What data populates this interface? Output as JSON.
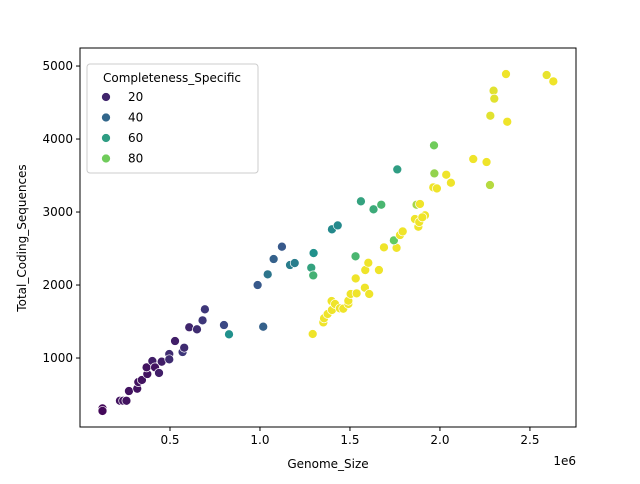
{
  "chart_data": {
    "type": "scatter",
    "title": "",
    "xlabel": "Genome_Size",
    "ylabel": "Total_Coding_Sequences",
    "x_offset_label": "1e6",
    "xlim": [
      0,
      2756000
    ],
    "ylim": [
      55,
      5247
    ],
    "x_ticks": [
      500000,
      1000000,
      1500000,
      2000000,
      2500000
    ],
    "x_tick_labels": [
      "0.5",
      "1.0",
      "1.5",
      "2.0",
      "2.5"
    ],
    "y_ticks": [
      1000,
      2000,
      3000,
      4000,
      5000
    ],
    "y_tick_labels": [
      "1000",
      "2000",
      "3000",
      "4000",
      "5000"
    ],
    "grid": false,
    "hue": "Completeness_Specific",
    "colormap": "viridis",
    "hue_range": [
      10,
      100
    ],
    "legend": {
      "title": "Completeness_Specific",
      "position": "upper-left",
      "entries": [
        {
          "label": "20",
          "value": 20
        },
        {
          "label": "40",
          "value": 40
        },
        {
          "label": "60",
          "value": 60
        },
        {
          "label": "80",
          "value": 80
        }
      ]
    },
    "points": [
      {
        "x": 125000,
        "y": 310,
        "c": 12
      },
      {
        "x": 125000,
        "y": 275,
        "c": 12
      },
      {
        "x": 222000,
        "y": 415,
        "c": 15
      },
      {
        "x": 240000,
        "y": 415,
        "c": 15
      },
      {
        "x": 258000,
        "y": 415,
        "c": 15
      },
      {
        "x": 272000,
        "y": 548,
        "c": 15
      },
      {
        "x": 318000,
        "y": 580,
        "c": 15
      },
      {
        "x": 324000,
        "y": 671,
        "c": 15
      },
      {
        "x": 344000,
        "y": 699,
        "c": 15
      },
      {
        "x": 374000,
        "y": 781,
        "c": 15
      },
      {
        "x": 370000,
        "y": 872,
        "c": 15
      },
      {
        "x": 402000,
        "y": 959,
        "c": 18
      },
      {
        "x": 417000,
        "y": 872,
        "c": 15
      },
      {
        "x": 439000,
        "y": 795,
        "c": 18
      },
      {
        "x": 454000,
        "y": 950,
        "c": 18
      },
      {
        "x": 496000,
        "y": 1055,
        "c": 22
      },
      {
        "x": 496000,
        "y": 982,
        "c": 22
      },
      {
        "x": 528000,
        "y": 1233,
        "c": 18
      },
      {
        "x": 570000,
        "y": 1082,
        "c": 25
      },
      {
        "x": 579000,
        "y": 1141,
        "c": 22
      },
      {
        "x": 607000,
        "y": 1421,
        "c": 20
      },
      {
        "x": 650000,
        "y": 1393,
        "c": 22
      },
      {
        "x": 681000,
        "y": 1516,
        "c": 25
      },
      {
        "x": 694000,
        "y": 1667,
        "c": 25
      },
      {
        "x": 800000,
        "y": 1452,
        "c": 30
      },
      {
        "x": 828000,
        "y": 1325,
        "c": 55
      },
      {
        "x": 1018000,
        "y": 1429,
        "c": 38
      },
      {
        "x": 987000,
        "y": 2000,
        "c": 35
      },
      {
        "x": 1043000,
        "y": 2146,
        "c": 45
      },
      {
        "x": 1076000,
        "y": 2356,
        "c": 38
      },
      {
        "x": 1122000,
        "y": 2525,
        "c": 35
      },
      {
        "x": 1167000,
        "y": 2274,
        "c": 48
      },
      {
        "x": 1193000,
        "y": 2301,
        "c": 48
      },
      {
        "x": 1285000,
        "y": 2237,
        "c": 62
      },
      {
        "x": 1298000,
        "y": 2438,
        "c": 55
      },
      {
        "x": 1296000,
        "y": 2132,
        "c": 68
      },
      {
        "x": 1293000,
        "y": 1329,
        "c": 98
      },
      {
        "x": 1400000,
        "y": 2763,
        "c": 52
      },
      {
        "x": 1432000,
        "y": 2817,
        "c": 52
      },
      {
        "x": 1531000,
        "y": 2393,
        "c": 70
      },
      {
        "x": 1561000,
        "y": 3147,
        "c": 62
      },
      {
        "x": 1631000,
        "y": 3037,
        "c": 65
      },
      {
        "x": 1674000,
        "y": 3100,
        "c": 70
      },
      {
        "x": 1763000,
        "y": 3584,
        "c": 60
      },
      {
        "x": 1352000,
        "y": 1488,
        "c": 98
      },
      {
        "x": 1356000,
        "y": 1544,
        "c": 98
      },
      {
        "x": 1376000,
        "y": 1603,
        "c": 98
      },
      {
        "x": 1400000,
        "y": 1658,
        "c": 98
      },
      {
        "x": 1398000,
        "y": 1781,
        "c": 98
      },
      {
        "x": 1417000,
        "y": 1740,
        "c": 98
      },
      {
        "x": 1444000,
        "y": 1681,
        "c": 98
      },
      {
        "x": 1463000,
        "y": 1676,
        "c": 98
      },
      {
        "x": 1491000,
        "y": 1740,
        "c": 98
      },
      {
        "x": 1491000,
        "y": 1785,
        "c": 98
      },
      {
        "x": 1504000,
        "y": 1877,
        "c": 98
      },
      {
        "x": 1537000,
        "y": 1886,
        "c": 98
      },
      {
        "x": 1532000,
        "y": 2090,
        "c": 98
      },
      {
        "x": 1583000,
        "y": 1963,
        "c": 98
      },
      {
        "x": 1607000,
        "y": 1877,
        "c": 98
      },
      {
        "x": 1585000,
        "y": 2205,
        "c": 98
      },
      {
        "x": 1602000,
        "y": 2305,
        "c": 98
      },
      {
        "x": 1661000,
        "y": 2205,
        "c": 98
      },
      {
        "x": 1689000,
        "y": 2516,
        "c": 98
      },
      {
        "x": 1759000,
        "y": 2510,
        "c": 98
      },
      {
        "x": 1744000,
        "y": 2612,
        "c": 78
      },
      {
        "x": 1778000,
        "y": 2685,
        "c": 98
      },
      {
        "x": 1793000,
        "y": 2734,
        "c": 98
      },
      {
        "x": 1880000,
        "y": 2799,
        "c": 98
      },
      {
        "x": 1861000,
        "y": 2904,
        "c": 98
      },
      {
        "x": 1885000,
        "y": 2863,
        "c": 98
      },
      {
        "x": 1917000,
        "y": 2955,
        "c": 98
      },
      {
        "x": 1902000,
        "y": 2927,
        "c": 98
      },
      {
        "x": 1870000,
        "y": 3100,
        "c": 88
      },
      {
        "x": 1889000,
        "y": 3110,
        "c": 98
      },
      {
        "x": 1969000,
        "y": 3529,
        "c": 85
      },
      {
        "x": 1963000,
        "y": 3338,
        "c": 98
      },
      {
        "x": 1983000,
        "y": 3323,
        "c": 98
      },
      {
        "x": 2035000,
        "y": 3511,
        "c": 98
      },
      {
        "x": 2061000,
        "y": 3401,
        "c": 98
      },
      {
        "x": 1967000,
        "y": 3913,
        "c": 80
      },
      {
        "x": 2185000,
        "y": 3726,
        "c": 98
      },
      {
        "x": 2259000,
        "y": 3685,
        "c": 98
      },
      {
        "x": 2278000,
        "y": 3370,
        "c": 90
      },
      {
        "x": 2280000,
        "y": 4319,
        "c": 96
      },
      {
        "x": 2298000,
        "y": 4662,
        "c": 96
      },
      {
        "x": 2302000,
        "y": 4553,
        "c": 96
      },
      {
        "x": 2367000,
        "y": 4890,
        "c": 98
      },
      {
        "x": 2374000,
        "y": 4237,
        "c": 98
      },
      {
        "x": 2593000,
        "y": 4877,
        "c": 97
      },
      {
        "x": 2630000,
        "y": 4790,
        "c": 98
      }
    ]
  }
}
